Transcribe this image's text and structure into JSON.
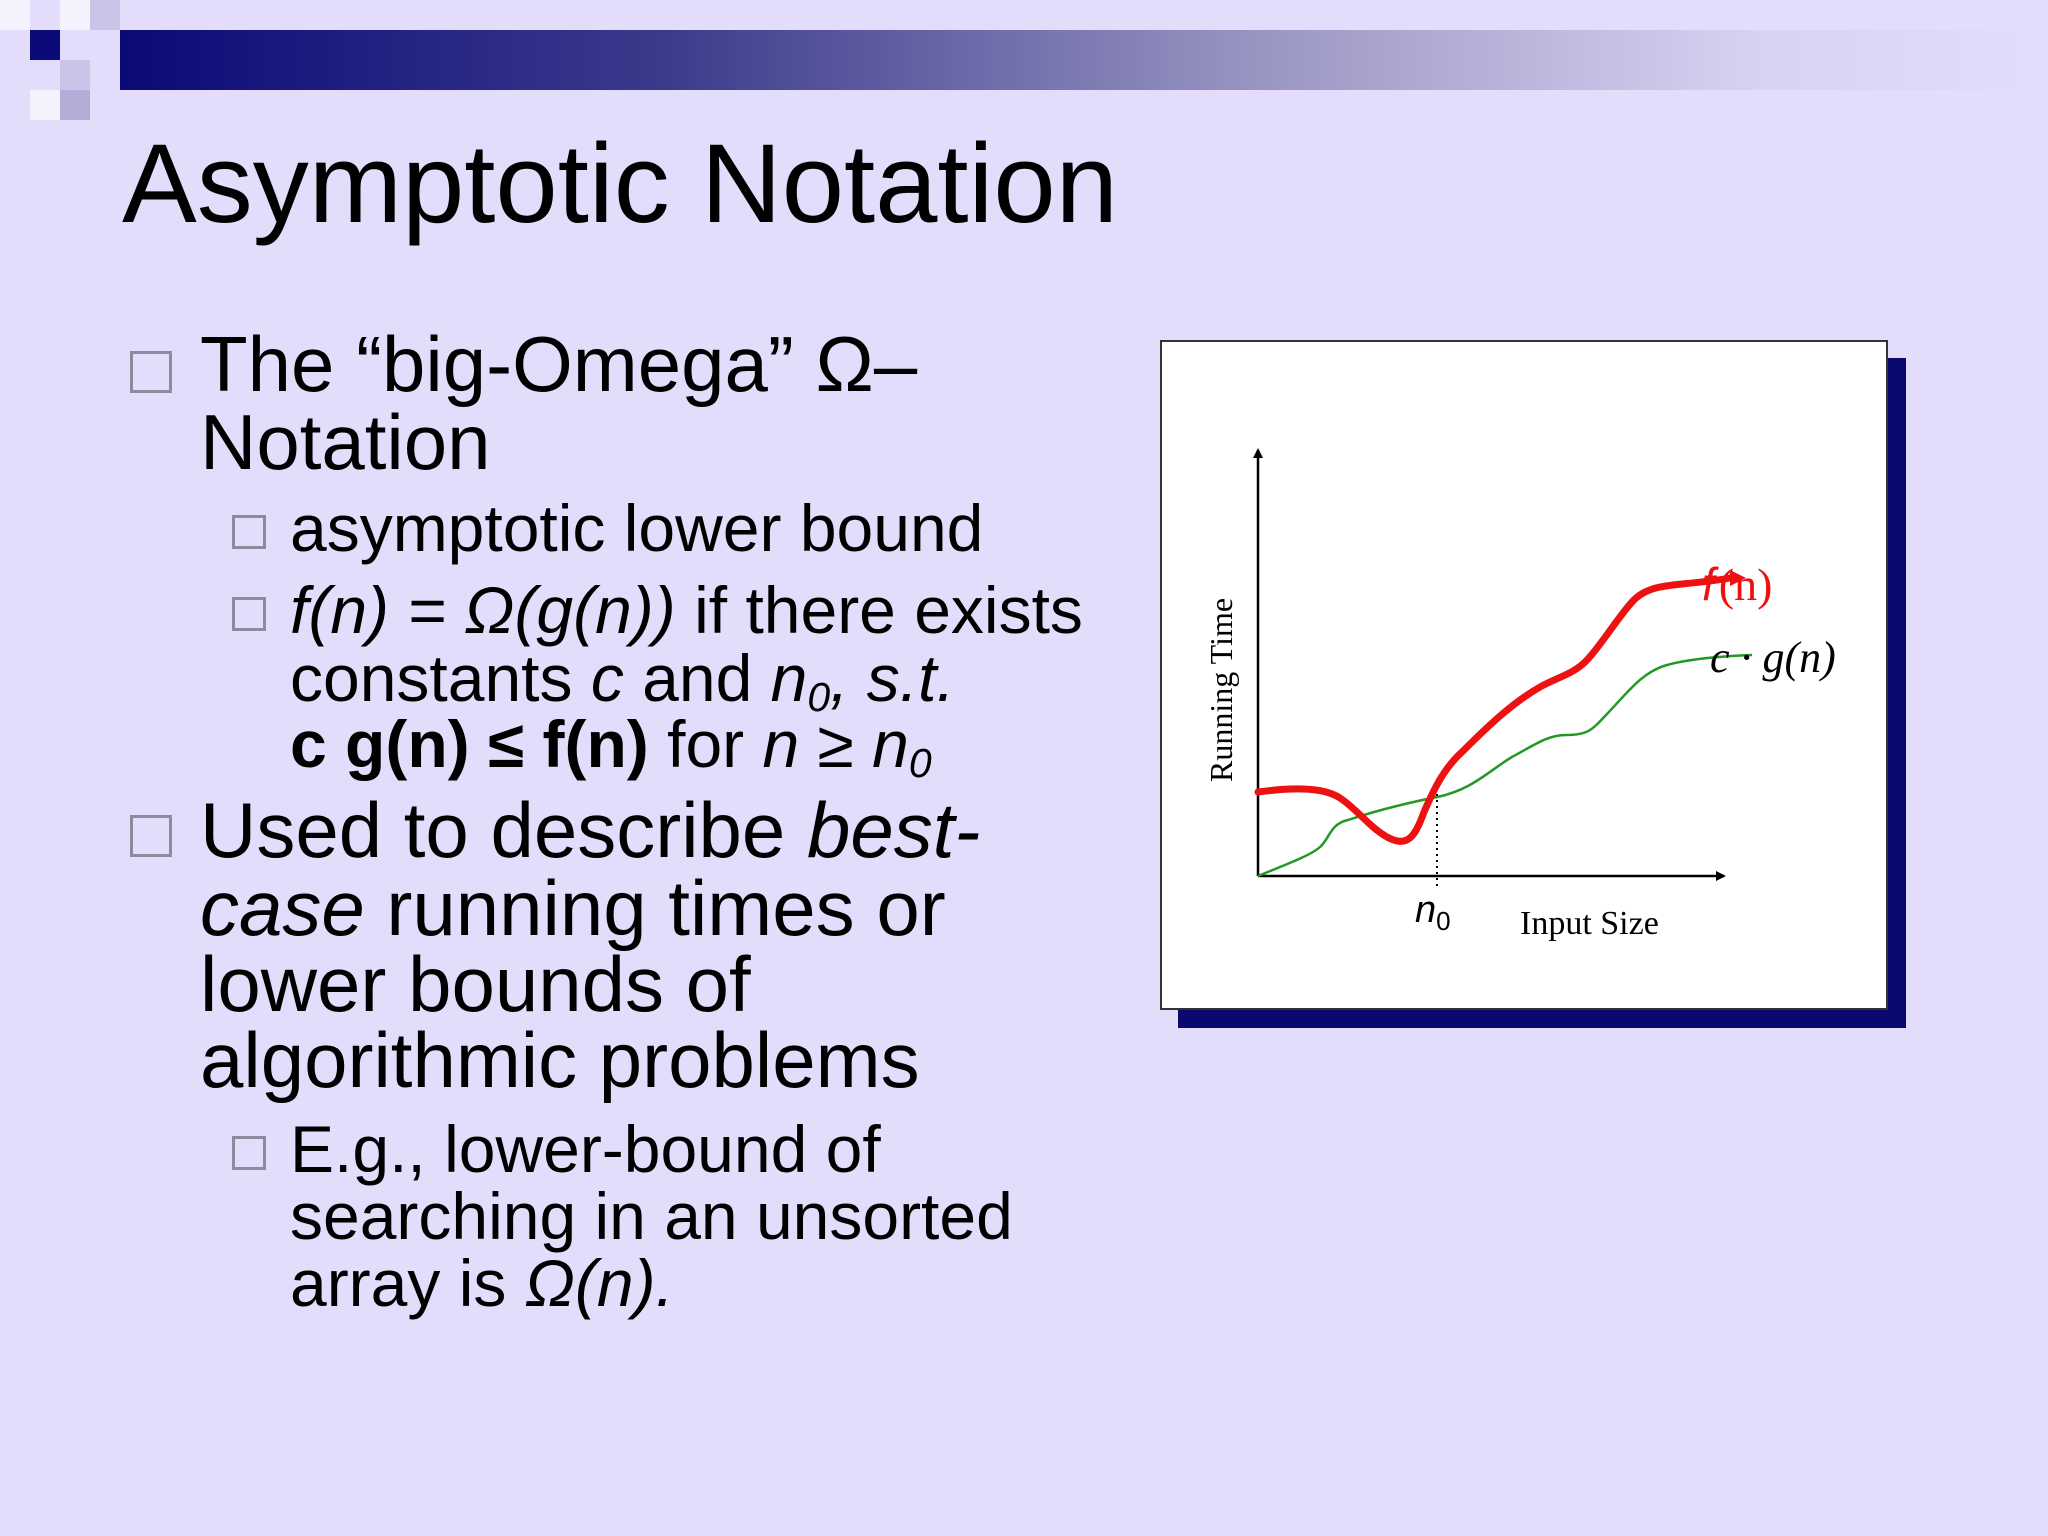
{
  "slide": {
    "title": "Asymptotic Notation",
    "bullets": [
      {
        "text": "The “big-Omega” Ω–Notation",
        "line1": "The “big-Omega” Ω–",
        "line2": "Notation",
        "sub_bullets": [
          {
            "text": "asymptotic lower bound"
          },
          {
            "text": "f(n) = Ω(g(n)) if there exists constants c and n0, s.t. c g(n) ≤ f(n) for n ≥ n0",
            "line1_math": "f(n) = Ω(g(n))",
            "line1_rest": " if there exists",
            "line2_a": "constants ",
            "line2_c": "c",
            "line2_b": " and ",
            "line2_n": "n",
            "line2_sub": "0",
            "line2_st": ", s.t.",
            "line3_bold": "c g(n) ≤ f(n)",
            "line3_for": " for ",
            "line3_n": "n",
            "line3_geq": " ≥ ",
            "line3_n0": "n",
            "line3_sub": "0"
          }
        ]
      },
      {
        "text": "Used to describe best-case running times or lower bounds of algorithmic problems",
        "line1_plain": "Used to describe ",
        "line1_italic": "best-",
        "line2_italic": "case",
        "line2_plain": " running times or",
        "line3": "lower bounds of",
        "line4": "algorithmic problems",
        "sub_bullets": [
          {
            "text": "E.g., lower-bound of searching in an unsorted array is Ω(n).",
            "line1": "E.g., lower-bound of",
            "line2": "searching in an unsorted",
            "line3_plain": "array is ",
            "line3_math": "Ω(n)."
          }
        ]
      }
    ]
  },
  "chart_data": {
    "type": "line",
    "title": "",
    "xlabel": "Input Size",
    "ylabel": "Running Time",
    "marker_label": "n",
    "marker_sub": "0",
    "series": [
      {
        "name": "f(n)",
        "label_f": "f",
        "label_arg": "(n)",
        "color": "#ee1111"
      },
      {
        "name": "c·g(n)",
        "label": "c · g(n)",
        "color": "#229922"
      }
    ]
  },
  "colors": {
    "background": "#e3dcfb",
    "title_bar": "#0a0a78",
    "f_curve": "#ee1111",
    "g_curve": "#229922",
    "shadow": "#0a0a6e"
  }
}
